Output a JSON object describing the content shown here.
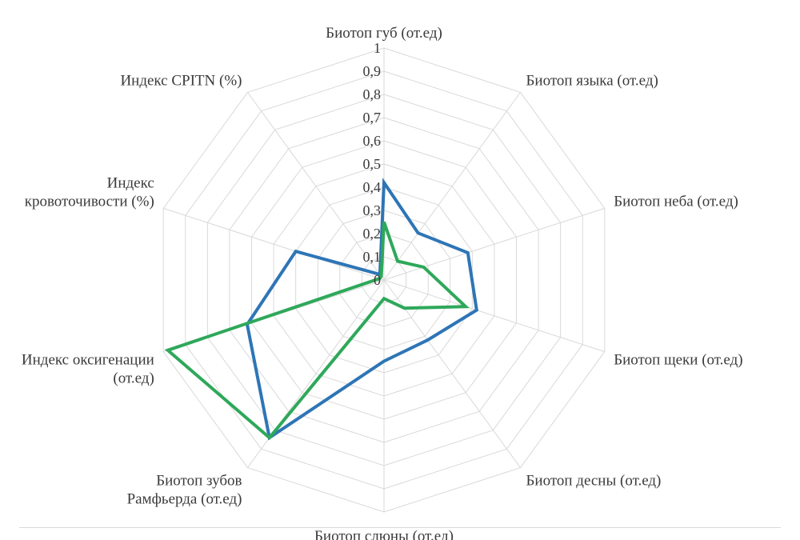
{
  "chart_data": {
    "type": "radar",
    "axes": [
      [
        "Биотоп губ (от.ед)"
      ],
      [
        "Биотоп языка (от.ед)"
      ],
      [
        "Биотоп неба (от.ед)"
      ],
      [
        "Биотоп щеки (от.ед)"
      ],
      [
        "Биотоп десны (от.ед)"
      ],
      [
        "Биотоп слюны (от.ед)"
      ],
      [
        "Биотоп зубов",
        "Рамфьерда (от.ед)"
      ],
      [
        "Индекс оксигенации",
        "(от.ед)"
      ],
      [
        "Индекс",
        "кровоточивости (%)"
      ],
      [
        "Индекс CPITN (%)"
      ]
    ],
    "ticks": [
      "0",
      "0,1",
      "0,2",
      "0,3",
      "0,4",
      "0,5",
      "0,6",
      "0,7",
      "0,8",
      "0,9",
      "1"
    ],
    "rmin": 0,
    "rmax": 1,
    "grid": true,
    "legend": "none",
    "series": [
      {
        "color": "#2e75b6",
        "values": [
          0.42,
          0.25,
          0.38,
          0.42,
          0.32,
          0.35,
          0.84,
          0.62,
          0.4,
          0.03
        ]
      },
      {
        "color": "#2ea85a",
        "values": [
          0.25,
          0.1,
          0.18,
          0.37,
          0.15,
          0.08,
          0.84,
          0.98,
          0.02,
          0.02
        ]
      }
    ]
  }
}
